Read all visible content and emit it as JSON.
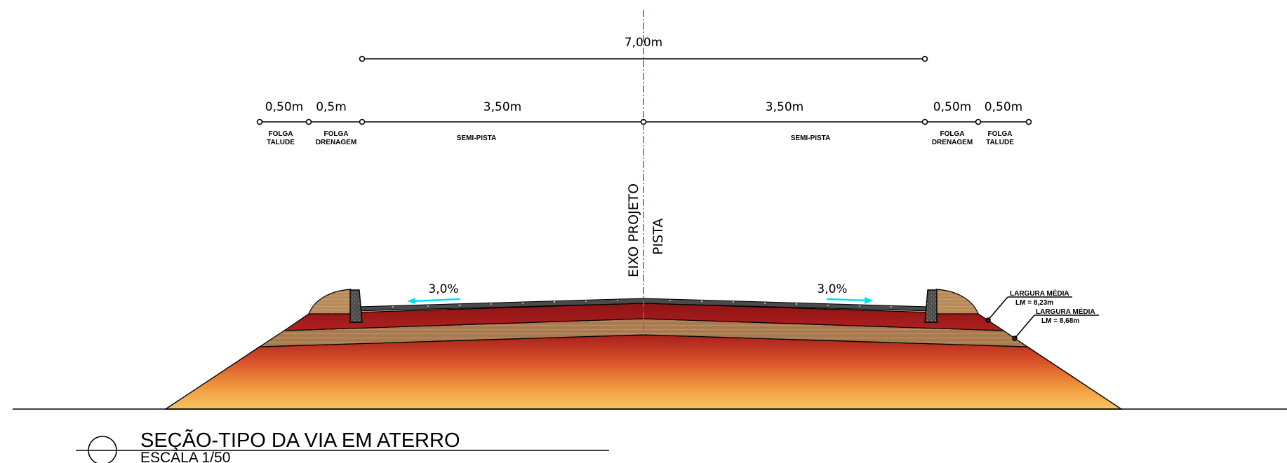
{
  "dimensions": {
    "total": "7,00m",
    "left_talude": "0,50m",
    "left_drenagem": "0,5m",
    "left_semi": "3,50m",
    "right_semi": "3,50m",
    "right_drenagem": "0,50m",
    "right_talude": "0,50m"
  },
  "zones": {
    "folga_talude_1": "FOLGA",
    "folga_talude_2": "TALUDE",
    "folga_drenagem_1": "FOLGA",
    "folga_drenagem_2": "DRENAGEM",
    "semi_pista": "SEMI-PISTA"
  },
  "axis": {
    "label_1": "EIXO PROJETO",
    "label_2": "PISTA"
  },
  "slopes": {
    "left": "3,0%",
    "right": "3,0%"
  },
  "callouts": {
    "upper_title": "LARGURA  MÉDIA",
    "upper_value": "LM  =  8,23m",
    "lower_title": "LARGURA  MÉDIA",
    "lower_value": "LM  =  8,68m"
  },
  "title_block": {
    "title": "SEÇÃO-TIPO DA VIA EM ATERRO",
    "scale": "ESCALA 1/50"
  },
  "colors": {
    "axis": "#e020e0",
    "arrow": "#00e0f0",
    "asphalt": "#4a4a4a",
    "base_red": "#a01818",
    "subbase_brown": "#a87a50",
    "fill_top": "#a8201a",
    "fill_bottom": "#f8c060",
    "curb_soil": "#b88a5a"
  }
}
